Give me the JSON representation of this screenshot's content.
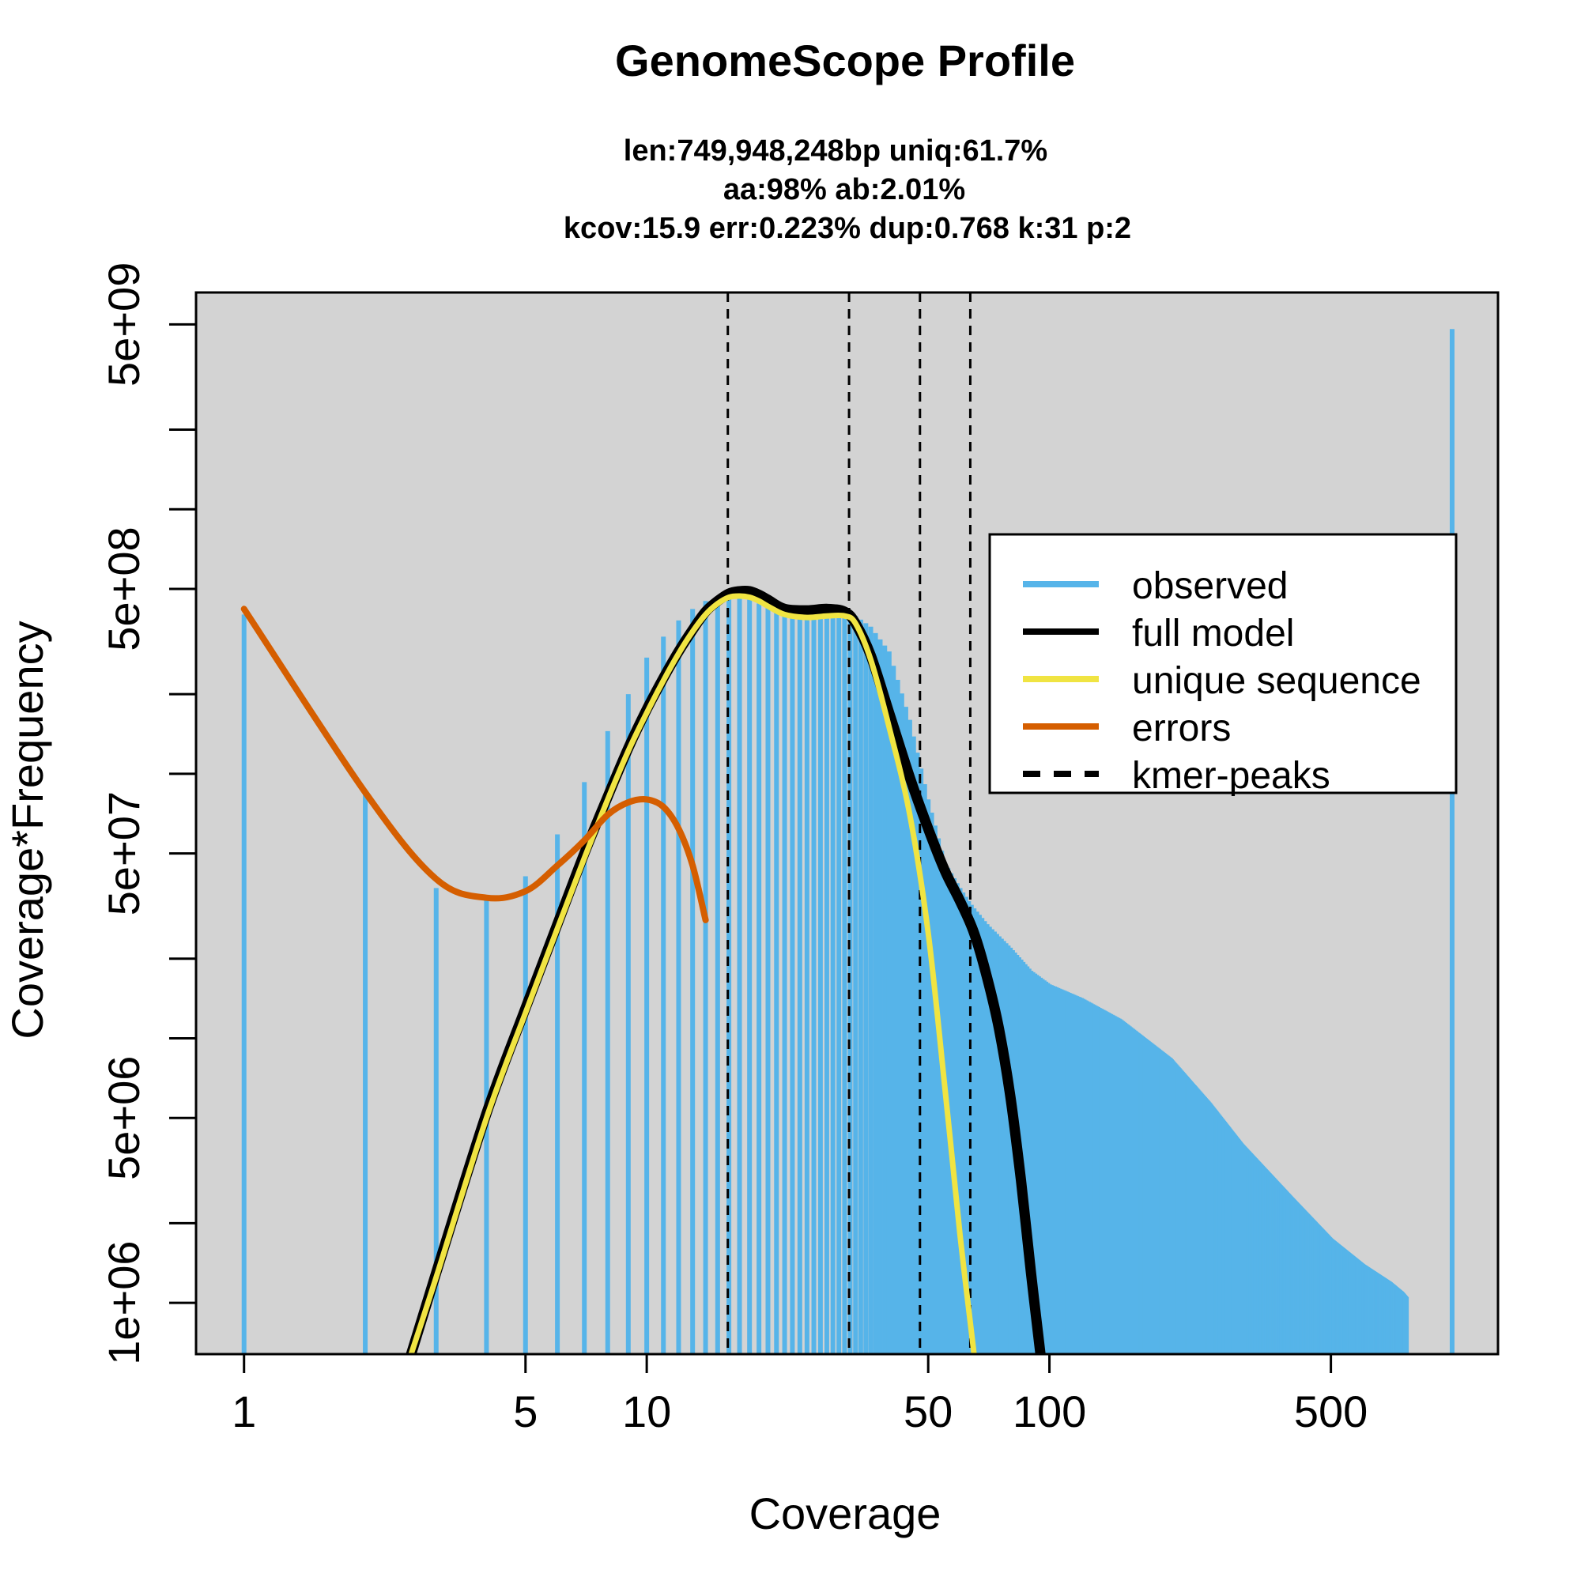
{
  "chart_data": {
    "type": "line",
    "title": "GenomeScope Profile",
    "subtitle_lines": [
      "len:749,948,248bp uniq:61.7%",
      "aa:98% ab:2.01%",
      "kcov:15.9 err:0.223%  dup:0.768  k:31 p:2"
    ],
    "xlabel": "Coverage",
    "ylabel": "Coverage*Frequency",
    "x_scale": "log",
    "y_scale": "log",
    "xlim": [
      0.76,
      1300
    ],
    "ylim": [
      640000,
      6600000000
    ],
    "x_ticks": [
      1,
      5,
      10,
      50,
      100,
      500
    ],
    "x_tick_labels": [
      "1",
      "5",
      "10",
      "50",
      "100",
      "500"
    ],
    "y_ticks": [
      1000000,
      2000000,
      5000000,
      10000000,
      20000000,
      50000000,
      100000000,
      200000000,
      500000000,
      1000000000,
      2000000000,
      5000000000
    ],
    "y_tick_labels": [
      "1e+06",
      "",
      "5e+06",
      "",
      "",
      "5e+07",
      "",
      "",
      "5e+08",
      "",
      "",
      "5e+09"
    ],
    "legend_position": "top-right",
    "grid": false,
    "background_color": "#d3d3d3",
    "kmer_peaks": [
      15.9,
      31.8,
      47.7,
      63.6
    ],
    "series": [
      {
        "name": "observed",
        "kind": "histogram",
        "color": "#56b4e9",
        "x": [
          1,
          2,
          3,
          4,
          5,
          6,
          7,
          8,
          9,
          10,
          11,
          12,
          13,
          14,
          15,
          16,
          17,
          18,
          19,
          20,
          22,
          25,
          28,
          31,
          33,
          36,
          40,
          45,
          50,
          55,
          60,
          63,
          65,
          70,
          80,
          90,
          100,
          120,
          150,
          200,
          250,
          300,
          400,
          500,
          600,
          700,
          750,
          770,
          1000
        ],
        "y": [
          400000000,
          85000000,
          37000000,
          34000000,
          41000000,
          59000000,
          93000000,
          145000000,
          200000000,
          275000000,
          330000000,
          380000000,
          420000000,
          450000000,
          465000000,
          470000000,
          470000000,
          455000000,
          440000000,
          430000000,
          405000000,
          395000000,
          395000000,
          395000000,
          395000000,
          360000000,
          290000000,
          160000000,
          80000000,
          46000000,
          37000000,
          33000000,
          31000000,
          27000000,
          22000000,
          18000000,
          16000000,
          14200000,
          11800000,
          8400000,
          5700000,
          4000000,
          2500000,
          1750000,
          1400000,
          1200000,
          1100000,
          1050000,
          4800000000
        ]
      },
      {
        "name": "full model",
        "kind": "line",
        "color": "#000000",
        "x": [
          2.6,
          3,
          4,
          5,
          6,
          7,
          8,
          9,
          10,
          11,
          12,
          13,
          14,
          15,
          16,
          17,
          18,
          19,
          20,
          22,
          25,
          28,
          31,
          33,
          36,
          40,
          45,
          50,
          55,
          60,
          65,
          70,
          75,
          80,
          85,
          90,
          95
        ],
        "y": [
          640000,
          1300000,
          5200000,
          13000000,
          27000000,
          50000000,
          82000000,
          125000000,
          175000000,
          230000000,
          290000000,
          350000000,
          410000000,
          450000000,
          480000000,
          490000000,
          490000000,
          475000000,
          455000000,
          420000000,
          415000000,
          420000000,
          410000000,
          370000000,
          280000000,
          170000000,
          97000000,
          62000000,
          43000000,
          33000000,
          25000000,
          17000000,
          10800000,
          6000000,
          2900000,
          1300000,
          640000
        ]
      },
      {
        "name": "unique sequence",
        "kind": "line",
        "color": "#f0e442",
        "x": [
          2.6,
          3,
          4,
          5,
          6,
          7,
          8,
          9,
          10,
          11,
          12,
          13,
          14,
          15,
          16,
          17,
          18,
          19,
          20,
          22,
          25,
          28,
          31,
          33,
          36,
          40,
          45,
          50,
          55,
          60,
          65
        ],
        "y": [
          640000,
          1250000,
          5000000,
          12500000,
          26000000,
          48000000,
          80000000,
          122000000,
          170000000,
          225000000,
          285000000,
          345000000,
          400000000,
          440000000,
          465000000,
          470000000,
          465000000,
          450000000,
          430000000,
          400000000,
          390000000,
          395000000,
          395000000,
          370000000,
          270000000,
          150000000,
          70000000,
          25000000,
          6500000,
          1800000,
          640000
        ]
      },
      {
        "name": "errors",
        "kind": "line",
        "color": "#d55e00",
        "x": [
          1,
          2,
          3,
          4,
          5,
          6,
          7,
          8,
          9,
          10,
          11,
          12,
          13,
          14
        ],
        "y": [
          420000000,
          85000000,
          40000000,
          34000000,
          36000000,
          45000000,
          56000000,
          70000000,
          78000000,
          80000000,
          75000000,
          62000000,
          45000000,
          28000000
        ]
      },
      {
        "name": "kmer-peaks",
        "kind": "vline",
        "color": "#000000"
      }
    ]
  }
}
